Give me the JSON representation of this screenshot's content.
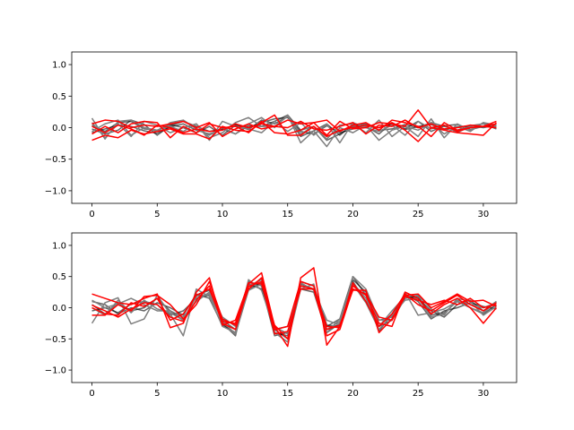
{
  "chart_data": [
    {
      "type": "line",
      "panel": "top",
      "x": [
        0,
        1,
        2,
        3,
        4,
        5,
        6,
        7,
        8,
        9,
        10,
        11,
        12,
        13,
        14,
        15,
        16,
        17,
        18,
        19,
        20,
        21,
        22,
        23,
        24,
        25,
        26,
        27,
        28,
        29,
        30,
        31
      ],
      "xlim": [
        -1.55,
        32.55
      ],
      "ylim": [
        -1.2,
        1.2
      ],
      "xticks": [
        0,
        5,
        10,
        15,
        20,
        25,
        30
      ],
      "yticks": [
        -1.0,
        -0.5,
        0.0,
        0.5,
        1.0
      ],
      "xtick_labels": [
        "0",
        "5",
        "10",
        "15",
        "20",
        "25",
        "30"
      ],
      "ytick_labels": [
        "−1.0",
        "−0.5",
        "0.0",
        "0.5",
        "1.0"
      ],
      "grid": false,
      "series_colors": [
        "#000000",
        "#7f7f7f",
        "#ff0000"
      ],
      "series": [
        {
          "color": "#000000",
          "values": [
            -0.08,
            -0.02,
            0.04,
            0.02,
            -0.05,
            -0.09,
            0.01,
            0.06,
            -0.04,
            -0.1,
            -0.03,
            0.05,
            0.0,
            0.08,
            0.14,
            0.16,
            -0.06,
            -0.1,
            0.03,
            -0.08,
            -0.02,
            0.04,
            0.0,
            0.06,
            -0.03,
            0.02,
            0.05,
            -0.04,
            0.01,
            0.03,
            0.06,
            -0.02
          ]
        },
        {
          "color": "#000000",
          "values": [
            0.04,
            -0.06,
            0.08,
            0.1,
            -0.02,
            -0.04,
            0.05,
            0.0,
            -0.08,
            0.02,
            -0.12,
            0.04,
            -0.03,
            0.12,
            0.06,
            0.18,
            -0.14,
            -0.05,
            0.06,
            -0.12,
            0.05,
            0.02,
            -0.1,
            0.08,
            -0.02,
            0.1,
            -0.06,
            0.03,
            0.05,
            -0.03,
            0.02,
            0.05
          ]
        },
        {
          "color": "#000000",
          "values": [
            -0.02,
            -0.1,
            -0.04,
            0.12,
            0.05,
            -0.12,
            0.03,
            0.1,
            0.02,
            -0.06,
            -0.02,
            -0.1,
            0.03,
            0.02,
            0.1,
            0.2,
            -0.04,
            0.02,
            -0.2,
            -0.1,
            0.02,
            0.06,
            -0.04,
            -0.02,
            0.05,
            0.0,
            0.08,
            0.02,
            -0.04,
            0.04,
            0.0,
            0.04
          ]
        },
        {
          "color": "#7f7f7f",
          "values": [
            0.15,
            -0.18,
            0.1,
            0.12,
            0.0,
            -0.06,
            0.08,
            0.12,
            -0.02,
            -0.12,
            0.0,
            -0.1,
            0.06,
            0.16,
            0.0,
            0.2,
            -0.24,
            -0.05,
            -0.3,
            0.0,
            -0.08,
            0.04,
            -0.2,
            -0.04,
            0.02,
            -0.14,
            0.14,
            -0.16,
            0.06,
            -0.04,
            0.08,
            0.0
          ]
        },
        {
          "color": "#7f7f7f",
          "values": [
            -0.06,
            0.06,
            0.12,
            -0.12,
            0.0,
            -0.04,
            0.02,
            -0.06,
            0.06,
            -0.16,
            -0.08,
            0.08,
            0.16,
            0.02,
            0.02,
            0.18,
            -0.1,
            0.02,
            -0.18,
            0.04,
            0.06,
            -0.08,
            0.12,
            -0.14,
            0.02,
            -0.04,
            0.08,
            -0.1,
            0.02,
            -0.06,
            0.08,
            0.04
          ]
        },
        {
          "color": "#7f7f7f",
          "values": [
            0.08,
            -0.16,
            0.06,
            -0.14,
            0.1,
            0.04,
            -0.08,
            0.0,
            0.06,
            -0.2,
            0.1,
            0.02,
            -0.02,
            -0.08,
            0.1,
            -0.06,
            0.08,
            -0.12,
            0.06,
            -0.24,
            0.08,
            0.0,
            -0.06,
            0.04,
            -0.12,
            0.1,
            -0.02,
            0.04,
            -0.08,
            0.02,
            0.06,
            0.02
          ]
        },
        {
          "color": "#ff0000",
          "values": [
            -0.2,
            -0.12,
            -0.16,
            -0.04,
            -0.1,
            -0.06,
            -0.02,
            -0.1,
            -0.1,
            -0.18,
            0.02,
            -0.04,
            -0.06,
            0.08,
            0.2,
            -0.12,
            -0.12,
            0.02,
            -0.14,
            -0.04,
            0.0,
            0.04,
            0.0,
            0.08,
            -0.04,
            -0.22,
            0.0,
            -0.04,
            -0.08,
            -0.1,
            -0.12,
            0.08
          ]
        },
        {
          "color": "#ff0000",
          "values": [
            0.06,
            0.12,
            0.1,
            0.0,
            0.04,
            0.02,
            0.06,
            0.1,
            0.0,
            0.08,
            -0.14,
            -0.02,
            0.06,
            -0.02,
            0.02,
            0.12,
            0.06,
            0.08,
            -0.12,
            0.1,
            -0.02,
            0.0,
            0.08,
            0.06,
            0.02,
            0.28,
            0.0,
            0.04,
            -0.06,
            0.0,
            0.02,
            0.1
          ]
        },
        {
          "color": "#ff0000",
          "values": [
            -0.1,
            0.02,
            -0.08,
            0.06,
            0.1,
            0.08,
            -0.16,
            0.02,
            -0.08,
            0.06,
            0.0,
            0.02,
            -0.08,
            0.1,
            -0.08,
            -0.1,
            -0.04,
            0.08,
            0.12,
            -0.06,
            0.04,
            0.08,
            -0.04,
            0.12,
            0.08,
            0.02,
            -0.14,
            0.08,
            -0.04,
            0.0,
            0.02,
            0.06
          ]
        },
        {
          "color": "#ff0000",
          "values": [
            0.02,
            -0.08,
            0.04,
            -0.02,
            -0.12,
            0.04,
            0.0,
            -0.08,
            -0.02,
            -0.06,
            -0.04,
            0.06,
            0.0,
            0.06,
            0.02,
            0.0,
            0.1,
            -0.02,
            -0.04,
            0.02,
            0.08,
            -0.1,
            0.04,
            0.02,
            0.12,
            0.0,
            0.06,
            -0.02,
            0.0,
            0.04,
            0.02,
            0.0
          ]
        }
      ]
    },
    {
      "type": "line",
      "panel": "bottom",
      "x": [
        0,
        1,
        2,
        3,
        4,
        5,
        6,
        7,
        8,
        9,
        10,
        11,
        12,
        13,
        14,
        15,
        16,
        17,
        18,
        19,
        20,
        21,
        22,
        23,
        24,
        25,
        26,
        27,
        28,
        29,
        30,
        31
      ],
      "xlim": [
        -1.55,
        32.55
      ],
      "ylim": [
        -1.2,
        1.2
      ],
      "xticks": [
        0,
        5,
        10,
        15,
        20,
        25,
        30
      ],
      "yticks": [
        -1.0,
        -0.5,
        0.0,
        0.5,
        1.0
      ],
      "xtick_labels": [
        "0",
        "5",
        "10",
        "15",
        "20",
        "25",
        "30"
      ],
      "ytick_labels": [
        "−1.0",
        "−0.5",
        "0.0",
        "0.5",
        "1.0"
      ],
      "grid": false,
      "series_colors": [
        "#000000",
        "#7f7f7f",
        "#ff0000"
      ],
      "series": [
        {
          "color": "#000000",
          "values": [
            0.05,
            -0.1,
            0.08,
            -0.05,
            0.0,
            0.15,
            -0.05,
            -0.2,
            0.2,
            0.28,
            -0.25,
            -0.45,
            0.42,
            0.35,
            -0.45,
            -0.4,
            0.38,
            0.3,
            -0.3,
            -0.18,
            0.5,
            0.2,
            -0.38,
            -0.1,
            0.2,
            0.15,
            -0.05,
            -0.15,
            0.05,
            0.12,
            -0.05,
            0.1
          ]
        },
        {
          "color": "#000000",
          "values": [
            -0.05,
            0.0,
            -0.08,
            0.06,
            0.1,
            0.05,
            -0.12,
            -0.05,
            0.15,
            0.2,
            -0.2,
            -0.35,
            0.3,
            0.4,
            -0.4,
            -0.45,
            0.3,
            0.25,
            -0.4,
            -0.25,
            0.42,
            0.1,
            -0.3,
            -0.2,
            0.15,
            0.18,
            -0.12,
            -0.08,
            0.1,
            0.0,
            -0.1,
            0.05
          ]
        },
        {
          "color": "#000000",
          "values": [
            0.1,
            0.05,
            -0.1,
            0.0,
            -0.05,
            0.08,
            0.0,
            -0.12,
            0.22,
            0.15,
            -0.28,
            -0.4,
            0.38,
            0.3,
            -0.35,
            -0.5,
            0.42,
            0.35,
            -0.28,
            -0.3,
            0.45,
            0.25,
            -0.2,
            -0.15,
            0.22,
            0.1,
            -0.18,
            -0.05,
            0.0,
            0.08,
            0.02,
            -0.02
          ]
        },
        {
          "color": "#7f7f7f",
          "values": [
            -0.25,
            0.08,
            0.16,
            -0.26,
            -0.18,
            0.2,
            -0.1,
            -0.45,
            0.3,
            0.18,
            -0.3,
            -0.4,
            0.45,
            0.28,
            -0.35,
            -0.3,
            0.35,
            0.3,
            -0.2,
            -0.28,
            0.5,
            0.3,
            -0.2,
            -0.2,
            0.25,
            -0.12,
            -0.08,
            -0.02,
            0.1,
            0.0,
            -0.08,
            0.1
          ]
        },
        {
          "color": "#7f7f7f",
          "values": [
            0.12,
            0.0,
            0.06,
            0.15,
            0.05,
            -0.05,
            -0.05,
            -0.15,
            0.1,
            0.25,
            -0.15,
            -0.3,
            0.35,
            0.45,
            -0.4,
            -0.55,
            0.3,
            0.38,
            -0.4,
            -0.18,
            0.4,
            0.15,
            -0.3,
            -0.05,
            0.18,
            0.2,
            -0.02,
            -0.12,
            0.15,
            0.1,
            -0.12,
            0.02
          ]
        },
        {
          "color": "#7f7f7f",
          "values": [
            0.0,
            -0.12,
            0.12,
            -0.08,
            0.12,
            -0.02,
            -0.08,
            -0.2,
            0.18,
            0.22,
            -0.22,
            -0.42,
            0.28,
            0.38,
            -0.3,
            -0.42,
            0.4,
            0.28,
            -0.35,
            -0.22,
            0.38,
            0.08,
            -0.35,
            -0.12,
            0.12,
            0.15,
            -0.15,
            -0.1,
            0.12,
            0.05,
            0.0,
            0.08
          ]
        },
        {
          "color": "#ff0000",
          "values": [
            0.22,
            0.15,
            0.08,
            0.05,
            0.15,
            0.22,
            -0.32,
            -0.25,
            0.25,
            0.48,
            -0.28,
            -0.2,
            0.38,
            0.56,
            -0.3,
            -0.62,
            0.48,
            0.64,
            -0.6,
            -0.3,
            0.35,
            0.2,
            -0.25,
            -0.3,
            0.25,
            0.15,
            -0.1,
            0.05,
            0.15,
            0.0,
            -0.25,
            0.0
          ]
        },
        {
          "color": "#ff0000",
          "values": [
            -0.12,
            -0.12,
            0.05,
            -0.05,
            0.18,
            0.2,
            0.05,
            -0.18,
            0.05,
            0.42,
            -0.18,
            -0.28,
            0.3,
            0.48,
            -0.35,
            -0.3,
            0.42,
            0.35,
            -0.35,
            -0.28,
            0.28,
            0.28,
            -0.4,
            -0.18,
            0.2,
            0.22,
            0.0,
            0.1,
            0.22,
            0.1,
            0.12,
            0.02
          ]
        },
        {
          "color": "#ff0000",
          "values": [
            0.0,
            -0.1,
            -0.12,
            0.08,
            0.02,
            0.15,
            -0.2,
            -0.1,
            0.2,
            0.3,
            -0.22,
            -0.25,
            0.4,
            0.38,
            -0.28,
            -0.5,
            0.35,
            0.3,
            -0.45,
            -0.35,
            0.3,
            0.22,
            -0.15,
            -0.2,
            0.18,
            0.12,
            0.05,
            0.12,
            0.05,
            0.15,
            0.0,
            0.05
          ]
        },
        {
          "color": "#ff0000",
          "values": [
            0.04,
            -0.05,
            -0.15,
            -0.02,
            0.08,
            0.05,
            -0.15,
            -0.22,
            0.12,
            0.35,
            -0.25,
            -0.35,
            0.34,
            0.42,
            -0.42,
            -0.38,
            0.3,
            0.3,
            -0.3,
            -0.32,
            0.4,
            0.1,
            -0.3,
            -0.1,
            0.22,
            0.05,
            -0.05,
            0.08,
            0.2,
            0.05,
            -0.05,
            0.08
          ]
        }
      ]
    }
  ]
}
